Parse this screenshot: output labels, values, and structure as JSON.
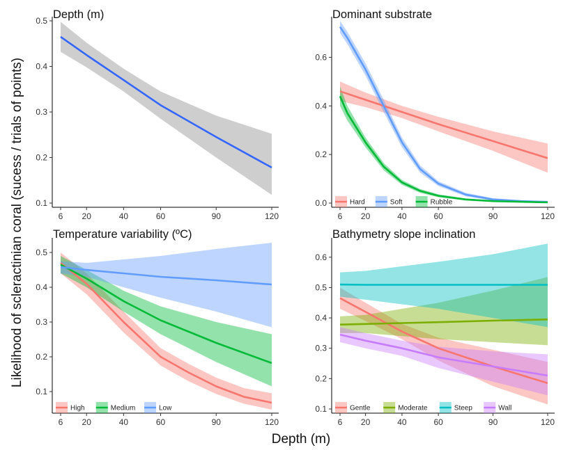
{
  "figure": {
    "ylabel": "Likelihood of scleractinian coral (sucess / trials of points)",
    "xlabel": "Depth (m)"
  },
  "chart_data": [
    {
      "type": "line",
      "title": "Depth (m)",
      "xlim": [
        6,
        120
      ],
      "ylim": [
        0.1,
        0.5
      ],
      "xticks": [
        6,
        20,
        40,
        60,
        90,
        120
      ],
      "yticks": [
        0.1,
        0.2,
        0.3,
        0.4,
        0.5
      ],
      "ytick_labels": [
        "0.1",
        "0.2",
        "0.3",
        "0.4",
        "0.5"
      ],
      "legend": "none",
      "series": [
        {
          "color": "#3366ff",
          "band_color": "#bebebe",
          "x": [
            6,
            20,
            40,
            60,
            90,
            120
          ],
          "y": [
            0.465,
            0.425,
            0.37,
            0.315,
            0.245,
            0.178
          ],
          "lower": [
            0.432,
            0.398,
            0.345,
            0.285,
            0.2,
            0.118
          ],
          "upper": [
            0.498,
            0.452,
            0.395,
            0.345,
            0.292,
            0.252
          ]
        }
      ]
    },
    {
      "type": "line",
      "title": "Dominant substrate",
      "xlim": [
        6,
        120
      ],
      "ylim": [
        0,
        0.75
      ],
      "xticks": [
        6,
        20,
        40,
        60,
        90,
        120
      ],
      "yticks": [
        0,
        0.2,
        0.4,
        0.6
      ],
      "ytick_labels": [
        "0.0",
        "0.2",
        "0.4",
        "0.6"
      ],
      "legend": "bottom-left",
      "series": [
        {
          "name": "Hard",
          "color": "#f8766d",
          "x": [
            6,
            20,
            40,
            60,
            90,
            120
          ],
          "y": [
            0.46,
            0.425,
            0.375,
            0.325,
            0.255,
            0.185
          ],
          "lower": [
            0.42,
            0.395,
            0.35,
            0.295,
            0.215,
            0.125
          ],
          "upper": [
            0.5,
            0.455,
            0.4,
            0.355,
            0.295,
            0.245
          ]
        },
        {
          "name": "Soft",
          "color": "#619cff",
          "x": [
            6,
            10,
            20,
            30,
            40,
            50,
            60,
            75,
            90,
            105,
            120
          ],
          "y": [
            0.725,
            0.68,
            0.55,
            0.4,
            0.25,
            0.14,
            0.08,
            0.035,
            0.015,
            0.008,
            0.005
          ],
          "lower": [
            0.7,
            0.655,
            0.525,
            0.375,
            0.23,
            0.125,
            0.07,
            0.028,
            0.01,
            0.004,
            0.001
          ],
          "upper": [
            0.75,
            0.705,
            0.575,
            0.425,
            0.27,
            0.155,
            0.09,
            0.042,
            0.02,
            0.012,
            0.009
          ]
        },
        {
          "name": "Rubble",
          "color": "#00ba38",
          "x": [
            6,
            10,
            20,
            30,
            40,
            50,
            60,
            75,
            90,
            120
          ],
          "y": [
            0.44,
            0.37,
            0.25,
            0.15,
            0.085,
            0.05,
            0.03,
            0.015,
            0.008,
            0.003
          ],
          "lower": [
            0.4,
            0.34,
            0.23,
            0.135,
            0.075,
            0.042,
            0.024,
            0.011,
            0.005,
            0.001
          ],
          "upper": [
            0.48,
            0.4,
            0.27,
            0.165,
            0.095,
            0.058,
            0.036,
            0.019,
            0.011,
            0.005
          ]
        }
      ]
    },
    {
      "type": "line",
      "title": "Temperature variability (ºC)",
      "xlim": [
        6,
        120
      ],
      "ylim": [
        0.05,
        0.53
      ],
      "xticks": [
        6,
        20,
        40,
        60,
        90,
        120
      ],
      "yticks": [
        0.1,
        0.2,
        0.3,
        0.4,
        0.5
      ],
      "ytick_labels": [
        "0.1",
        "0.2",
        "0.3",
        "0.4",
        "0.5"
      ],
      "legend": "bottom-left",
      "series": [
        {
          "name": "High",
          "color": "#f8766d",
          "x": [
            6,
            20,
            40,
            60,
            75,
            90,
            105,
            120
          ],
          "y": [
            0.47,
            0.41,
            0.3,
            0.2,
            0.155,
            0.115,
            0.085,
            0.068
          ],
          "lower": [
            0.44,
            0.38,
            0.27,
            0.175,
            0.13,
            0.093,
            0.065,
            0.048
          ],
          "upper": [
            0.5,
            0.44,
            0.33,
            0.225,
            0.18,
            0.14,
            0.11,
            0.095
          ]
        },
        {
          "name": "Medium",
          "color": "#00ba38",
          "x": [
            6,
            20,
            40,
            60,
            90,
            120
          ],
          "y": [
            0.465,
            0.425,
            0.36,
            0.305,
            0.24,
            0.182
          ],
          "lower": [
            0.44,
            0.4,
            0.33,
            0.265,
            0.185,
            0.115
          ],
          "upper": [
            0.49,
            0.45,
            0.39,
            0.345,
            0.3,
            0.265
          ]
        },
        {
          "name": "Low",
          "color": "#619cff",
          "x": [
            6,
            20,
            40,
            60,
            90,
            120
          ],
          "y": [
            0.458,
            0.45,
            0.44,
            0.43,
            0.42,
            0.408
          ],
          "lower": [
            0.44,
            0.43,
            0.4,
            0.37,
            0.33,
            0.285
          ],
          "upper": [
            0.475,
            0.47,
            0.48,
            0.49,
            0.51,
            0.528
          ]
        }
      ]
    },
    {
      "type": "line",
      "title": "Bathymetry slope inclination",
      "xlim": [
        6,
        120
      ],
      "ylim": [
        0.1,
        0.65
      ],
      "xticks": [
        6,
        20,
        40,
        60,
        90,
        120
      ],
      "yticks": [
        0.1,
        0.2,
        0.3,
        0.4,
        0.5,
        0.6
      ],
      "ytick_labels": [
        "0.1",
        "0.2",
        "0.3",
        "0.4",
        "0.5",
        "0.6"
      ],
      "legend": "bottom-left",
      "series": [
        {
          "name": "Gentle",
          "color": "#f8766d",
          "x": [
            6,
            20,
            40,
            60,
            90,
            120
          ],
          "y": [
            0.465,
            0.42,
            0.355,
            0.3,
            0.24,
            0.185
          ],
          "lower": [
            0.43,
            0.39,
            0.33,
            0.26,
            0.175,
            0.115
          ],
          "upper": [
            0.5,
            0.45,
            0.38,
            0.335,
            0.295,
            0.255
          ]
        },
        {
          "name": "Moderate",
          "color": "#7cae00",
          "x": [
            6,
            20,
            40,
            60,
            90,
            120
          ],
          "y": [
            0.378,
            0.38,
            0.383,
            0.386,
            0.391,
            0.395
          ],
          "lower": [
            0.35,
            0.35,
            0.34,
            0.33,
            0.32,
            0.31
          ],
          "upper": [
            0.405,
            0.41,
            0.43,
            0.45,
            0.49,
            0.535
          ]
        },
        {
          "name": "Steep",
          "color": "#00bfc4",
          "x": [
            6,
            20,
            40,
            60,
            90,
            120
          ],
          "y": [
            0.51,
            0.509,
            0.509,
            0.509,
            0.509,
            0.509
          ],
          "lower": [
            0.47,
            0.46,
            0.445,
            0.43,
            0.4,
            0.37
          ],
          "upper": [
            0.55,
            0.555,
            0.57,
            0.585,
            0.61,
            0.645
          ]
        },
        {
          "name": "Wall",
          "color": "#c77cff",
          "x": [
            6,
            20,
            40,
            60,
            90,
            120
          ],
          "y": [
            0.345,
            0.325,
            0.3,
            0.27,
            0.24,
            0.21
          ],
          "lower": [
            0.32,
            0.3,
            0.275,
            0.235,
            0.19,
            0.145
          ],
          "upper": [
            0.37,
            0.35,
            0.325,
            0.305,
            0.29,
            0.28
          ]
        }
      ]
    }
  ]
}
